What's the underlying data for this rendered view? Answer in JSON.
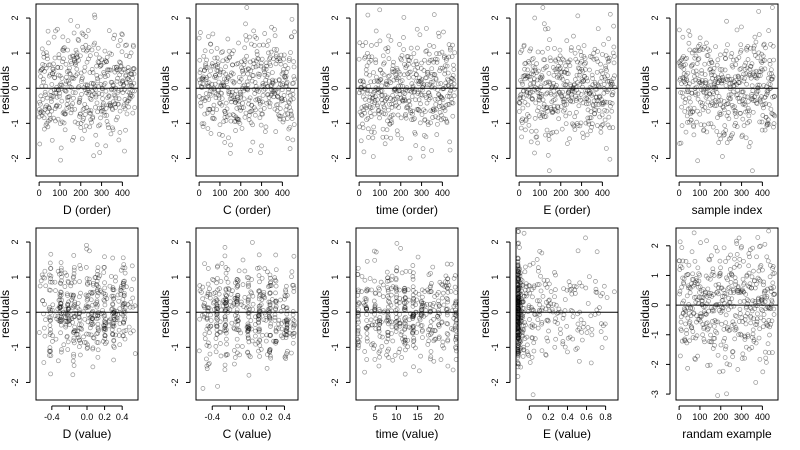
{
  "figure": {
    "background": "#ffffff",
    "point_color": "#000000",
    "point_style": "open-circle"
  },
  "chart_data": [
    {
      "type": "scatter",
      "xlabel": "D (order)",
      "ylabel": "residuals",
      "xlim": [
        -15,
        475
      ],
      "ylim": [
        -2.5,
        2.4
      ],
      "xticks": [
        0,
        100,
        200,
        300,
        400
      ],
      "yticks": [
        -2,
        -1,
        0,
        1,
        2
      ],
      "grid": false,
      "hline": 0,
      "gen": {
        "kind": "order",
        "seed": 11,
        "n": 460
      }
    },
    {
      "type": "scatter",
      "xlabel": "C (order)",
      "ylabel": "residuals",
      "xlim": [
        -15,
        475
      ],
      "ylim": [
        -2.5,
        2.4
      ],
      "xticks": [
        0,
        100,
        200,
        300,
        400
      ],
      "yticks": [
        -2,
        -1,
        0,
        1,
        2
      ],
      "grid": false,
      "hline": 0,
      "gen": {
        "kind": "order",
        "seed": 23,
        "n": 460
      }
    },
    {
      "type": "scatter",
      "xlabel": "time (order)",
      "ylabel": "residuals",
      "xlim": [
        -15,
        475
      ],
      "ylim": [
        -2.5,
        2.4
      ],
      "xticks": [
        0,
        100,
        200,
        300,
        400
      ],
      "yticks": [
        -2,
        -1,
        0,
        1,
        2
      ],
      "grid": false,
      "hline": 0,
      "gen": {
        "kind": "order",
        "seed": 37,
        "n": 460
      }
    },
    {
      "type": "scatter",
      "xlabel": "E (order)",
      "ylabel": "residuals",
      "xlim": [
        -15,
        475
      ],
      "ylim": [
        -2.5,
        2.4
      ],
      "xticks": [
        0,
        100,
        200,
        300,
        400
      ],
      "yticks": [
        -2,
        -1,
        0,
        1,
        2
      ],
      "grid": false,
      "hline": 0,
      "gen": {
        "kind": "order",
        "seed": 41,
        "n": 460
      }
    },
    {
      "type": "scatter",
      "xlabel": "sample index",
      "ylabel": "residuals",
      "xlim": [
        -15,
        475
      ],
      "ylim": [
        -2.5,
        2.4
      ],
      "xticks": [
        0,
        100,
        200,
        300,
        400
      ],
      "yticks": [
        -2,
        -1,
        0,
        1,
        2
      ],
      "grid": false,
      "hline": 0,
      "gen": {
        "kind": "order",
        "seed": 53,
        "n": 460
      }
    },
    {
      "type": "scatter",
      "xlabel": "D (value)",
      "ylabel": "residuals",
      "xlim": [
        -0.58,
        0.58
      ],
      "ylim": [
        -2.5,
        2.4
      ],
      "xticks": [
        -0.4,
        -0.2,
        0.0,
        0.2,
        0.4
      ],
      "xtick_labels": [
        "-0.4",
        "",
        "0.0",
        "0.2",
        "0.4"
      ],
      "yticks": [
        -2,
        -1,
        0,
        1,
        2
      ],
      "grid": false,
      "hline": 0,
      "gen": {
        "kind": "columns",
        "seed": 61,
        "n": 460,
        "xrange": [
          -0.55,
          0.55
        ],
        "cols": [
          -0.42,
          -0.3,
          -0.22,
          -0.15,
          -0.08,
          0.0,
          0.06,
          0.12,
          0.2,
          0.3,
          0.42
        ],
        "colJitter": 0.012,
        "uniformFrac": 0.4
      }
    },
    {
      "type": "scatter",
      "xlabel": "C (value)",
      "ylabel": "residuals",
      "xlim": [
        -0.58,
        0.55
      ],
      "ylim": [
        -2.5,
        2.4
      ],
      "xticks": [
        -0.4,
        -0.2,
        0.0,
        0.2,
        0.4
      ],
      "xtick_labels": [
        "-0.4",
        "",
        "0.0",
        "0.2",
        "0.4"
      ],
      "yticks": [
        -2,
        -1,
        0,
        1,
        2
      ],
      "grid": false,
      "hline": 0,
      "gen": {
        "kind": "columns",
        "seed": 71,
        "n": 460,
        "xrange": [
          -0.55,
          0.52
        ],
        "cols": [
          -0.45,
          -0.35,
          -0.25,
          -0.12,
          0.0,
          0.12,
          0.24,
          0.3,
          0.42,
          0.5
        ],
        "colJitter": 0.01,
        "uniformFrac": 0.45
      }
    },
    {
      "type": "scatter",
      "xlabel": "time (value)",
      "ylabel": "residuals",
      "xlim": [
        0.5,
        24.5
      ],
      "ylim": [
        -2.5,
        2.4
      ],
      "xticks": [
        5,
        10,
        15,
        20
      ],
      "yticks": [
        -2,
        -1,
        0,
        1,
        2
      ],
      "grid": false,
      "hline": 0,
      "gen": {
        "kind": "columns",
        "seed": 83,
        "n": 460,
        "xrange": [
          1,
          24
        ],
        "cols": [
          1,
          3,
          5,
          6,
          8,
          10,
          12,
          14,
          16,
          18,
          20,
          22,
          24
        ],
        "colJitter": 0.15,
        "uniformFrac": 0.45
      }
    },
    {
      "type": "scatter",
      "xlabel": "E (value)",
      "ylabel": "residuals",
      "xlim": [
        -0.14,
        0.93
      ],
      "ylim": [
        -2.5,
        2.4
      ],
      "xticks": [
        0.0,
        0.2,
        0.4,
        0.6,
        0.8
      ],
      "yticks": [
        -2,
        -1,
        0,
        1,
        2
      ],
      "grid": false,
      "hline": 0,
      "gen": {
        "kind": "skewed",
        "seed": 97,
        "n": 460,
        "xmin": -0.12,
        "xmax": 0.9
      }
    },
    {
      "type": "scatter",
      "xlabel": "randam example",
      "ylabel": "residuals",
      "xlim": [
        -15,
        475
      ],
      "ylim": [
        -3.2,
        2.6
      ],
      "xticks": [
        0,
        100,
        200,
        300,
        400
      ],
      "yticks": [
        -3,
        -2,
        -1,
        0,
        1,
        2
      ],
      "grid": false,
      "hline": 0,
      "gen": {
        "kind": "order",
        "seed": 103,
        "n": 460,
        "sd": 1.0
      }
    }
  ]
}
